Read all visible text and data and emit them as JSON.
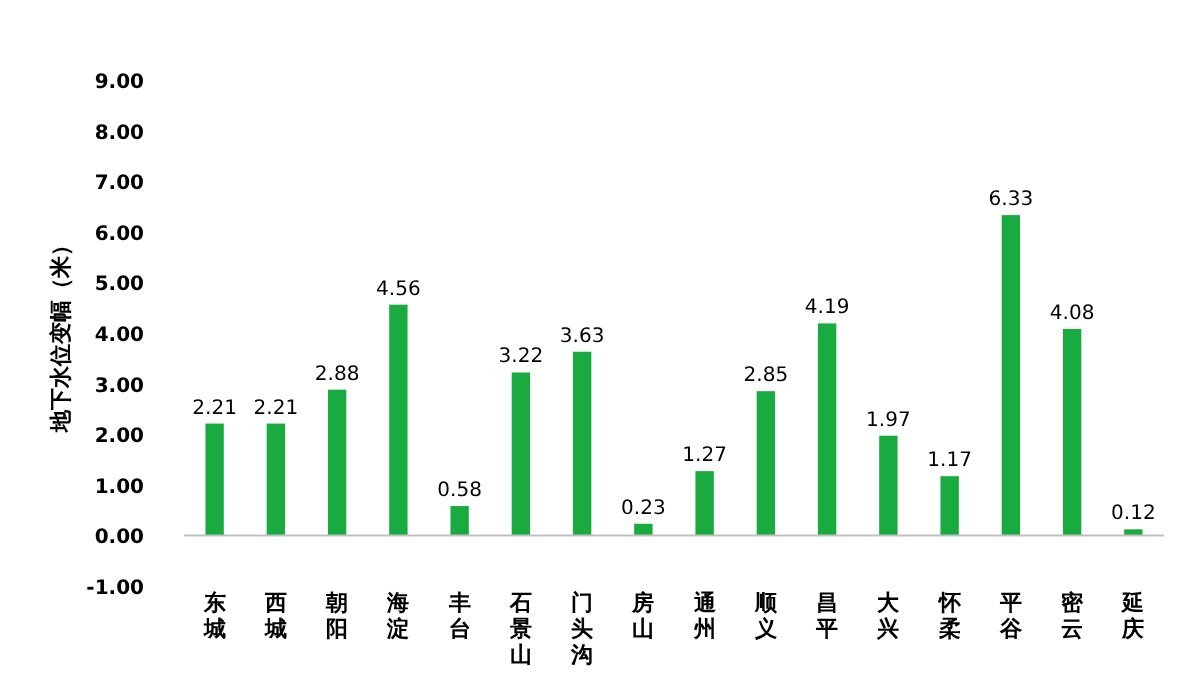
{
  "chart_data": {
    "type": "bar",
    "ylabel": "地下水位变幅（米）",
    "categories": [
      "东城",
      "西城",
      "朝阳",
      "海淀",
      "丰台",
      "石景山",
      "门头沟",
      "房山",
      "通州",
      "顺义",
      "昌平",
      "大兴",
      "怀柔",
      "平谷",
      "密云",
      "延庆"
    ],
    "values": [
      2.21,
      2.21,
      2.88,
      4.56,
      0.58,
      3.22,
      3.63,
      0.23,
      1.27,
      2.85,
      4.19,
      1.97,
      1.17,
      6.33,
      4.08,
      0.12
    ],
    "color": "#1aab40",
    "ylim": [
      -1,
      9
    ],
    "yticks": [
      {
        "value": -1,
        "label": "-1.00"
      },
      {
        "value": 0,
        "label": "0.00"
      },
      {
        "value": 1,
        "label": "1.00"
      },
      {
        "value": 2,
        "label": "2.00"
      },
      {
        "value": 3,
        "label": "3.00"
      },
      {
        "value": 4,
        "label": "4.00"
      },
      {
        "value": 5,
        "label": "5.00"
      },
      {
        "value": 6,
        "label": "6.00"
      },
      {
        "value": 7,
        "label": "7.00"
      },
      {
        "value": 8,
        "label": "8.00"
      },
      {
        "value": 9,
        "label": "9.00"
      }
    ],
    "data_labels": true,
    "grid": false
  }
}
